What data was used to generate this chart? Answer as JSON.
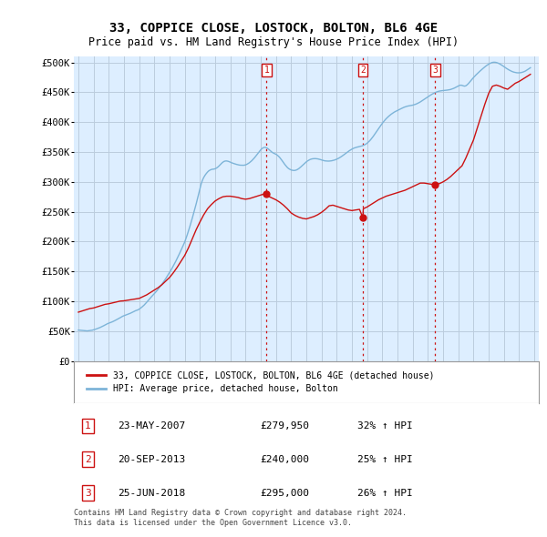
{
  "title": "33, COPPICE CLOSE, LOSTOCK, BOLTON, BL6 4GE",
  "subtitle": "Price paid vs. HM Land Registry's House Price Index (HPI)",
  "title_fontsize": 10,
  "subtitle_fontsize": 8.5,
  "ylabel_ticks": [
    "£0",
    "£50K",
    "£100K",
    "£150K",
    "£200K",
    "£250K",
    "£300K",
    "£350K",
    "£400K",
    "£450K",
    "£500K"
  ],
  "ytick_values": [
    0,
    50000,
    100000,
    150000,
    200000,
    250000,
    300000,
    350000,
    400000,
    450000,
    500000
  ],
  "ylim": [
    0,
    510000
  ],
  "xlim_start": 1994.7,
  "xlim_end": 2025.3,
  "hpi_color": "#7db4d8",
  "price_color": "#cc1111",
  "vline_color": "#cc1111",
  "chart_bg": "#ddeeff",
  "background_color": "#ffffff",
  "grid_color": "#bbccdd",
  "purchases": [
    {
      "date_num": 2007.38,
      "price": 279950,
      "label": "1"
    },
    {
      "date_num": 2013.72,
      "price": 240000,
      "label": "2"
    },
    {
      "date_num": 2018.48,
      "price": 295000,
      "label": "3"
    }
  ],
  "table_rows": [
    {
      "num": "1",
      "date": "23-MAY-2007",
      "price": "£279,950",
      "change": "32% ↑ HPI"
    },
    {
      "num": "2",
      "date": "20-SEP-2013",
      "price": "£240,000",
      "change": "25% ↑ HPI"
    },
    {
      "num": "3",
      "date": "25-JUN-2018",
      "price": "£295,000",
      "change": "26% ↑ HPI"
    }
  ],
  "legend_entries": [
    "33, COPPICE CLOSE, LOSTOCK, BOLTON, BL6 4GE (detached house)",
    "HPI: Average price, detached house, Bolton"
  ],
  "footer": "Contains HM Land Registry data © Crown copyright and database right 2024.\nThis data is licensed under the Open Government Licence v3.0.",
  "hpi_years": [
    1995.0,
    1995.083,
    1995.167,
    1995.25,
    1995.333,
    1995.417,
    1995.5,
    1995.583,
    1995.667,
    1995.75,
    1995.833,
    1995.917,
    1996.0,
    1996.083,
    1996.167,
    1996.25,
    1996.333,
    1996.417,
    1996.5,
    1996.583,
    1996.667,
    1996.75,
    1996.833,
    1996.917,
    1997.0,
    1997.083,
    1997.167,
    1997.25,
    1997.333,
    1997.417,
    1997.5,
    1997.583,
    1997.667,
    1997.75,
    1997.833,
    1997.917,
    1998.0,
    1998.083,
    1998.167,
    1998.25,
    1998.333,
    1998.417,
    1998.5,
    1998.583,
    1998.667,
    1998.75,
    1998.833,
    1998.917,
    1999.0,
    1999.083,
    1999.167,
    1999.25,
    1999.333,
    1999.417,
    1999.5,
    1999.583,
    1999.667,
    1999.75,
    1999.833,
    1999.917,
    2000.0,
    2000.083,
    2000.167,
    2000.25,
    2000.333,
    2000.417,
    2000.5,
    2000.583,
    2000.667,
    2000.75,
    2000.833,
    2000.917,
    2001.0,
    2001.083,
    2001.167,
    2001.25,
    2001.333,
    2001.417,
    2001.5,
    2001.583,
    2001.667,
    2001.75,
    2001.833,
    2001.917,
    2002.0,
    2002.083,
    2002.167,
    2002.25,
    2002.333,
    2002.417,
    2002.5,
    2002.583,
    2002.667,
    2002.75,
    2002.833,
    2002.917,
    2003.0,
    2003.083,
    2003.167,
    2003.25,
    2003.333,
    2003.417,
    2003.5,
    2003.583,
    2003.667,
    2003.75,
    2003.833,
    2003.917,
    2004.0,
    2004.083,
    2004.167,
    2004.25,
    2004.333,
    2004.417,
    2004.5,
    2004.583,
    2004.667,
    2004.75,
    2004.833,
    2004.917,
    2005.0,
    2005.083,
    2005.167,
    2005.25,
    2005.333,
    2005.417,
    2005.5,
    2005.583,
    2005.667,
    2005.75,
    2005.833,
    2005.917,
    2006.0,
    2006.083,
    2006.167,
    2006.25,
    2006.333,
    2006.417,
    2006.5,
    2006.583,
    2006.667,
    2006.75,
    2006.833,
    2006.917,
    2007.0,
    2007.083,
    2007.167,
    2007.25,
    2007.333,
    2007.417,
    2007.5,
    2007.583,
    2007.667,
    2007.75,
    2007.833,
    2007.917,
    2008.0,
    2008.083,
    2008.167,
    2008.25,
    2008.333,
    2008.417,
    2008.5,
    2008.583,
    2008.667,
    2008.75,
    2008.833,
    2008.917,
    2009.0,
    2009.083,
    2009.167,
    2009.25,
    2009.333,
    2009.417,
    2009.5,
    2009.583,
    2009.667,
    2009.75,
    2009.833,
    2009.917,
    2010.0,
    2010.083,
    2010.167,
    2010.25,
    2010.333,
    2010.417,
    2010.5,
    2010.583,
    2010.667,
    2010.75,
    2010.833,
    2010.917,
    2011.0,
    2011.083,
    2011.167,
    2011.25,
    2011.333,
    2011.417,
    2011.5,
    2011.583,
    2011.667,
    2011.75,
    2011.833,
    2011.917,
    2012.0,
    2012.083,
    2012.167,
    2012.25,
    2012.333,
    2012.417,
    2012.5,
    2012.583,
    2012.667,
    2012.75,
    2012.833,
    2012.917,
    2013.0,
    2013.083,
    2013.167,
    2013.25,
    2013.333,
    2013.417,
    2013.5,
    2013.583,
    2013.667,
    2013.75,
    2013.833,
    2013.917,
    2014.0,
    2014.083,
    2014.167,
    2014.25,
    2014.333,
    2014.417,
    2014.5,
    2014.583,
    2014.667,
    2014.75,
    2014.833,
    2014.917,
    2015.0,
    2015.083,
    2015.167,
    2015.25,
    2015.333,
    2015.417,
    2015.5,
    2015.583,
    2015.667,
    2015.75,
    2015.833,
    2015.917,
    2016.0,
    2016.083,
    2016.167,
    2016.25,
    2016.333,
    2016.417,
    2016.5,
    2016.583,
    2016.667,
    2016.75,
    2016.833,
    2016.917,
    2017.0,
    2017.083,
    2017.167,
    2017.25,
    2017.333,
    2017.417,
    2017.5,
    2017.583,
    2017.667,
    2017.75,
    2017.833,
    2017.917,
    2018.0,
    2018.083,
    2018.167,
    2018.25,
    2018.333,
    2018.417,
    2018.5,
    2018.583,
    2018.667,
    2018.75,
    2018.833,
    2018.917,
    2019.0,
    2019.083,
    2019.167,
    2019.25,
    2019.333,
    2019.417,
    2019.5,
    2019.583,
    2019.667,
    2019.75,
    2019.833,
    2019.917,
    2020.0,
    2020.083,
    2020.167,
    2020.25,
    2020.333,
    2020.417,
    2020.5,
    2020.583,
    2020.667,
    2020.75,
    2020.833,
    2020.917,
    2021.0,
    2021.083,
    2021.167,
    2021.25,
    2021.333,
    2021.417,
    2021.5,
    2021.583,
    2021.667,
    2021.75,
    2021.833,
    2021.917,
    2022.0,
    2022.083,
    2022.167,
    2022.25,
    2022.333,
    2022.417,
    2022.5,
    2022.583,
    2022.667,
    2022.75,
    2022.833,
    2022.917,
    2023.0,
    2023.083,
    2023.167,
    2023.25,
    2023.333,
    2023.417,
    2023.5,
    2023.583,
    2023.667,
    2023.75,
    2023.833,
    2023.917,
    2024.0,
    2024.083,
    2024.167,
    2024.25,
    2024.333,
    2024.417,
    2024.5,
    2024.583,
    2024.667,
    2024.75
  ],
  "hpi_values": [
    52000,
    51800,
    51600,
    51400,
    51200,
    51000,
    50800,
    50600,
    50900,
    51200,
    51500,
    51800,
    52500,
    53000,
    53800,
    54500,
    55300,
    56200,
    57200,
    58200,
    59300,
    60400,
    61500,
    62700,
    63500,
    64200,
    65100,
    66000,
    67000,
    68100,
    69200,
    70300,
    71500,
    72700,
    73900,
    75200,
    76000,
    76800,
    77600,
    78400,
    79200,
    80100,
    81100,
    82100,
    83200,
    84300,
    85000,
    85800,
    87000,
    88500,
    90200,
    92000,
    94000,
    96300,
    98700,
    101200,
    103800,
    106200,
    108500,
    110800,
    113000,
    115400,
    117900,
    120500,
    123200,
    126000,
    128900,
    131900,
    135000,
    138200,
    141600,
    145000,
    148200,
    151800,
    155600,
    159500,
    163500,
    167600,
    171900,
    176200,
    180700,
    185300,
    190000,
    194800,
    199500,
    205500,
    211800,
    218400,
    225200,
    232300,
    239700,
    247300,
    255100,
    263100,
    271400,
    279800,
    288300,
    296900,
    303000,
    307500,
    311000,
    314000,
    316500,
    318500,
    319800,
    320700,
    321200,
    321400,
    322000,
    323100,
    324600,
    326500,
    328700,
    330900,
    332800,
    334200,
    334900,
    335000,
    334600,
    333900,
    332900,
    332000,
    331200,
    330500,
    329800,
    329200,
    328700,
    328200,
    327900,
    327800,
    327800,
    327900,
    328500,
    329400,
    330600,
    332000,
    333700,
    335600,
    337800,
    340200,
    342800,
    345500,
    348300,
    351100,
    353700,
    355800,
    357100,
    357800,
    357600,
    356600,
    355000,
    353100,
    351200,
    349500,
    348200,
    347200,
    346200,
    344800,
    343000,
    340800,
    338100,
    335200,
    332200,
    329200,
    326500,
    324100,
    322300,
    321000,
    320000,
    319400,
    319100,
    319200,
    319800,
    320800,
    322100,
    323800,
    325700,
    327700,
    329700,
    331700,
    333500,
    335100,
    336400,
    337500,
    338200,
    338700,
    338900,
    339000,
    338800,
    338500,
    338000,
    337400,
    336700,
    336100,
    335500,
    335100,
    334900,
    334800,
    334800,
    335000,
    335300,
    335800,
    336400,
    337100,
    338000,
    339000,
    340100,
    341400,
    342800,
    344300,
    345900,
    347500,
    349100,
    350700,
    352200,
    353600,
    354800,
    355900,
    356800,
    357500,
    358100,
    358600,
    359100,
    359600,
    360200,
    361000,
    362000,
    363200,
    364700,
    366600,
    368700,
    371100,
    373800,
    376600,
    379600,
    382700,
    385800,
    388900,
    392000,
    395000,
    397900,
    400700,
    403200,
    405600,
    407700,
    409700,
    411500,
    413200,
    414700,
    416100,
    417400,
    418500,
    419600,
    420700,
    421700,
    422700,
    423700,
    424700,
    425500,
    426200,
    426800,
    427200,
    427600,
    428000,
    428400,
    429000,
    429700,
    430500,
    431500,
    432600,
    433800,
    435200,
    436600,
    438000,
    439500,
    441000,
    442400,
    443800,
    445100,
    446400,
    447600,
    448700,
    449700,
    450600,
    451300,
    451900,
    452300,
    452600,
    452800,
    453000,
    453200,
    453500,
    453800,
    454200,
    454700,
    455400,
    456200,
    457100,
    458200,
    459400,
    460600,
    461500,
    461800,
    461500,
    460700,
    460200,
    460800,
    462400,
    464500,
    466900,
    469500,
    472100,
    474500,
    476800,
    479000,
    481100,
    483100,
    485100,
    487000,
    488900,
    490700,
    492400,
    494100,
    495600,
    497000,
    498200,
    499200,
    499900,
    500200,
    500200,
    499800,
    499200,
    498200,
    497100,
    495800,
    494400,
    492900,
    491400,
    490000,
    488600,
    487400,
    486200,
    485200,
    484300,
    483600,
    483100,
    482700,
    482500,
    482500,
    482700,
    483100,
    483700,
    484500,
    485500,
    486800,
    488100,
    489600,
    491100
  ],
  "price_years": [
    1995.0,
    1995.25,
    1995.5,
    1995.75,
    1996.0,
    1996.25,
    1996.5,
    1996.75,
    1997.0,
    1997.25,
    1997.5,
    1997.75,
    1998.0,
    1998.25,
    1998.5,
    1998.75,
    1999.0,
    1999.25,
    1999.5,
    1999.75,
    2000.0,
    2000.25,
    2000.5,
    2000.75,
    2001.0,
    2001.25,
    2001.5,
    2001.75,
    2002.0,
    2002.25,
    2002.5,
    2002.75,
    2003.0,
    2003.25,
    2003.5,
    2003.75,
    2004.0,
    2004.25,
    2004.5,
    2004.75,
    2005.0,
    2005.25,
    2005.5,
    2005.75,
    2006.0,
    2006.25,
    2006.5,
    2006.75,
    2007.0,
    2007.25,
    2007.38,
    2007.5,
    2007.75,
    2008.0,
    2008.25,
    2008.5,
    2008.75,
    2009.0,
    2009.25,
    2009.5,
    2009.75,
    2010.0,
    2010.25,
    2010.5,
    2010.75,
    2011.0,
    2011.25,
    2011.5,
    2011.75,
    2012.0,
    2012.25,
    2012.5,
    2012.75,
    2013.0,
    2013.25,
    2013.5,
    2013.72,
    2013.75,
    2014.0,
    2014.25,
    2014.5,
    2014.75,
    2015.0,
    2015.25,
    2015.5,
    2015.75,
    2016.0,
    2016.25,
    2016.5,
    2016.75,
    2017.0,
    2017.25,
    2017.5,
    2017.75,
    2018.0,
    2018.25,
    2018.48,
    2018.5,
    2018.75,
    2019.0,
    2019.25,
    2019.5,
    2019.75,
    2020.0,
    2020.25,
    2020.5,
    2020.75,
    2021.0,
    2021.25,
    2021.5,
    2021.75,
    2022.0,
    2022.25,
    2022.5,
    2022.75,
    2023.0,
    2023.25,
    2023.5,
    2023.75,
    2024.0,
    2024.25,
    2024.5,
    2024.75
  ],
  "price_values": [
    82000,
    84000,
    86000,
    88000,
    89000,
    91000,
    93000,
    95000,
    96000,
    97500,
    99000,
    100500,
    101000,
    102000,
    103000,
    104000,
    105000,
    108000,
    111000,
    115000,
    119000,
    123000,
    128000,
    134000,
    140000,
    148000,
    157000,
    167000,
    177000,
    190000,
    205000,
    220000,
    233000,
    245000,
    255000,
    262000,
    268000,
    272000,
    275000,
    276000,
    276000,
    275000,
    274000,
    272000,
    271000,
    272000,
    274000,
    276000,
    278000,
    280000,
    279950,
    276000,
    273000,
    270000,
    266000,
    261000,
    255000,
    248000,
    244000,
    241000,
    239000,
    238000,
    240000,
    242000,
    245000,
    249000,
    254000,
    260000,
    261000,
    259000,
    257000,
    255000,
    253000,
    252000,
    253000,
    254000,
    240000,
    255000,
    258000,
    262000,
    266000,
    270000,
    273000,
    276000,
    278000,
    280000,
    282000,
    284000,
    286000,
    289000,
    292000,
    295000,
    298000,
    298000,
    297000,
    296000,
    295000,
    296000,
    297000,
    300000,
    304000,
    309000,
    315000,
    321000,
    327000,
    340000,
    355000,
    370000,
    390000,
    410000,
    430000,
    448000,
    460000,
    462000,
    460000,
    457000,
    455000,
    460000,
    465000,
    468000,
    472000,
    476000,
    480000
  ]
}
